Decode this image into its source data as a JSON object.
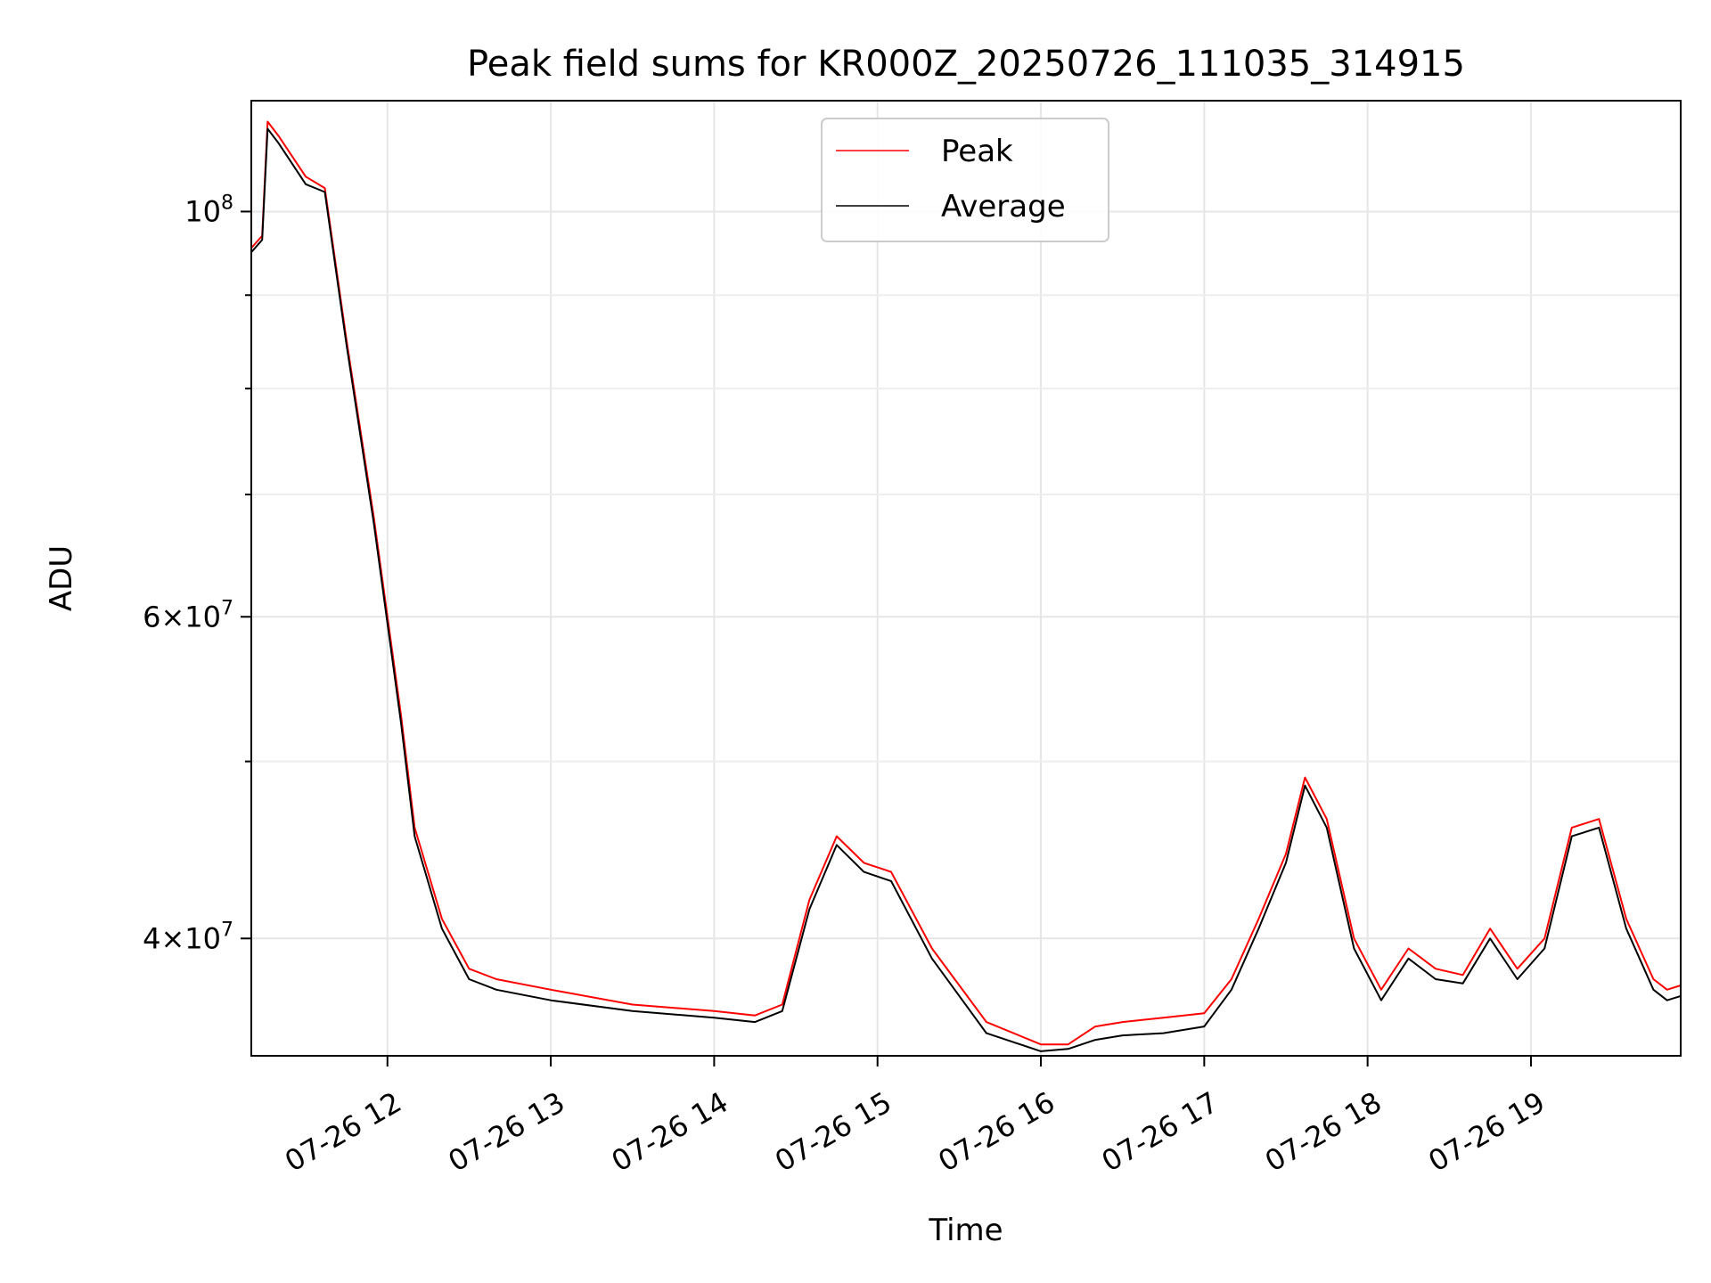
{
  "chart_data": {
    "type": "line",
    "title": "Peak field sums for KR000Z_20250726_111035_314915",
    "xlabel": "Time",
    "ylabel": "ADU",
    "yscale": "log",
    "xlim": [
      "2025-07-26T11:10",
      "2025-07-26T19:55"
    ],
    "ylim": [
      34500000,
      115000000
    ],
    "grid": true,
    "legend_position": "top-center",
    "x_tick_labels": [
      "07-26 12",
      "07-26 13",
      "07-26 14",
      "07-26 15",
      "07-26 16",
      "07-26 17",
      "07-26 18",
      "07-26 19"
    ],
    "y_tick_labels": [
      {
        "value": 100000000,
        "mantissa": "",
        "base": "10",
        "exponent": "8"
      },
      {
        "value": 60000000,
        "mantissa": "6",
        "base": "10",
        "exponent": "7"
      },
      {
        "value": 40000000,
        "mantissa": "4",
        "base": "10",
        "exponent": "7"
      }
    ],
    "y_minor_ticks": [
      50000000,
      70000000,
      80000000,
      90000000
    ],
    "series": [
      {
        "name": "Peak",
        "color": "#ff0000",
        "points": [
          [
            "11:10",
            95500000
          ],
          [
            "11:14",
            97000000
          ],
          [
            "11:16",
            112000000
          ],
          [
            "11:20",
            110000000
          ],
          [
            "11:30",
            104500000
          ],
          [
            "11:37",
            103000000
          ],
          [
            "11:45",
            85000000
          ],
          [
            "11:55",
            68000000
          ],
          [
            "12:00",
            60000000
          ],
          [
            "12:05",
            53000000
          ],
          [
            "12:10",
            46000000
          ],
          [
            "12:20",
            41000000
          ],
          [
            "12:30",
            38500000
          ],
          [
            "12:40",
            38000000
          ],
          [
            "13:00",
            37500000
          ],
          [
            "13:30",
            36800000
          ],
          [
            "14:00",
            36500000
          ],
          [
            "14:15",
            36300000
          ],
          [
            "14:25",
            36800000
          ],
          [
            "14:35",
            42000000
          ],
          [
            "14:45",
            45500000
          ],
          [
            "14:55",
            44000000
          ],
          [
            "15:05",
            43500000
          ],
          [
            "15:20",
            39500000
          ],
          [
            "15:40",
            36000000
          ],
          [
            "16:00",
            35000000
          ],
          [
            "16:10",
            35000000
          ],
          [
            "16:20",
            35800000
          ],
          [
            "16:30",
            36000000
          ],
          [
            "16:45",
            36200000
          ],
          [
            "17:00",
            36400000
          ],
          [
            "17:10",
            38000000
          ],
          [
            "17:20",
            41000000
          ],
          [
            "17:30",
            44500000
          ],
          [
            "17:37",
            49000000
          ],
          [
            "17:45",
            46500000
          ],
          [
            "17:55",
            40000000
          ],
          [
            "18:05",
            37500000
          ],
          [
            "18:15",
            39500000
          ],
          [
            "18:25",
            38500000
          ],
          [
            "18:35",
            38200000
          ],
          [
            "18:45",
            40500000
          ],
          [
            "18:55",
            38500000
          ],
          [
            "19:05",
            40000000
          ],
          [
            "19:15",
            46000000
          ],
          [
            "19:25",
            46500000
          ],
          [
            "19:35",
            41000000
          ],
          [
            "19:45",
            38000000
          ],
          [
            "19:50",
            37500000
          ],
          [
            "19:55",
            37700000
          ]
        ]
      },
      {
        "name": "Average",
        "color": "#000000",
        "points": [
          [
            "11:10",
            95000000
          ],
          [
            "11:14",
            96500000
          ],
          [
            "11:16",
            111000000
          ],
          [
            "11:20",
            109000000
          ],
          [
            "11:30",
            103500000
          ],
          [
            "11:37",
            102500000
          ],
          [
            "11:45",
            84500000
          ],
          [
            "11:55",
            67500000
          ],
          [
            "12:00",
            59500000
          ],
          [
            "12:05",
            52500000
          ],
          [
            "12:10",
            45500000
          ],
          [
            "12:20",
            40500000
          ],
          [
            "12:30",
            38000000
          ],
          [
            "12:40",
            37500000
          ],
          [
            "13:00",
            37000000
          ],
          [
            "13:30",
            36500000
          ],
          [
            "14:00",
            36200000
          ],
          [
            "14:15",
            36000000
          ],
          [
            "14:25",
            36500000
          ],
          [
            "14:35",
            41500000
          ],
          [
            "14:45",
            45000000
          ],
          [
            "14:55",
            43500000
          ],
          [
            "15:05",
            43000000
          ],
          [
            "15:20",
            39000000
          ],
          [
            "15:40",
            35500000
          ],
          [
            "16:00",
            34700000
          ],
          [
            "16:10",
            34800000
          ],
          [
            "16:20",
            35200000
          ],
          [
            "16:30",
            35400000
          ],
          [
            "16:45",
            35500000
          ],
          [
            "17:00",
            35800000
          ],
          [
            "17:10",
            37500000
          ],
          [
            "17:20",
            40500000
          ],
          [
            "17:30",
            44000000
          ],
          [
            "17:37",
            48500000
          ],
          [
            "17:45",
            46000000
          ],
          [
            "17:55",
            39500000
          ],
          [
            "18:05",
            37000000
          ],
          [
            "18:15",
            39000000
          ],
          [
            "18:25",
            38000000
          ],
          [
            "18:35",
            37800000
          ],
          [
            "18:45",
            40000000
          ],
          [
            "18:55",
            38000000
          ],
          [
            "19:05",
            39500000
          ],
          [
            "19:15",
            45500000
          ],
          [
            "19:25",
            46000000
          ],
          [
            "19:35",
            40500000
          ],
          [
            "19:45",
            37500000
          ],
          [
            "19:50",
            37000000
          ],
          [
            "19:55",
            37200000
          ]
        ]
      }
    ]
  }
}
